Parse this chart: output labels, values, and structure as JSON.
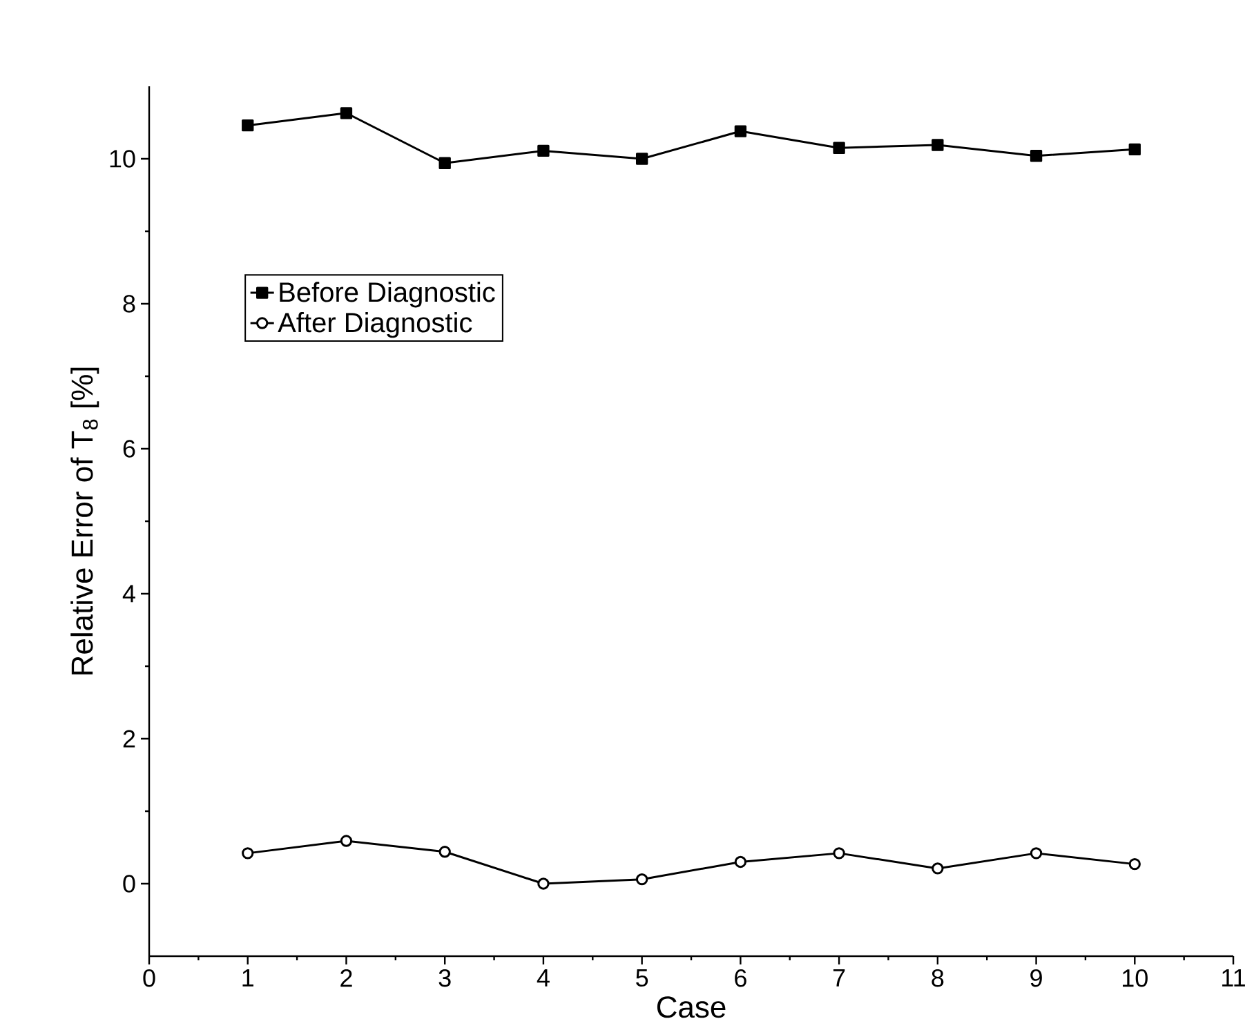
{
  "chart_data": {
    "type": "line",
    "xlabel": "Case",
    "ylabel": "Relative Error of T$_{8}$ [%]",
    "x": [
      1,
      2,
      3,
      4,
      5,
      6,
      7,
      8,
      9,
      10
    ],
    "series": [
      {
        "name": "Before Diagnostic",
        "color": "#000000",
        "marker": "square",
        "values": [
          10.46,
          10.63,
          9.94,
          10.11,
          10.0,
          10.38,
          10.15,
          10.19,
          10.04,
          10.13
        ]
      },
      {
        "name": "After Diagnostic",
        "color": "#000000",
        "marker": "circle",
        "values": [
          0.42,
          0.59,
          0.44,
          0.0,
          0.06,
          0.3,
          0.42,
          0.21,
          0.42,
          0.27
        ]
      }
    ],
    "xlim": [
      0,
      11
    ],
    "xticks": [
      0,
      1,
      2,
      3,
      4,
      5,
      6,
      7,
      8,
      9,
      10,
      11
    ],
    "ylim": [
      -1,
      11
    ],
    "yticks": [
      0,
      2,
      4,
      6,
      8,
      10
    ],
    "grid": false,
    "legend": "top left",
    "line_style": "solid"
  }
}
